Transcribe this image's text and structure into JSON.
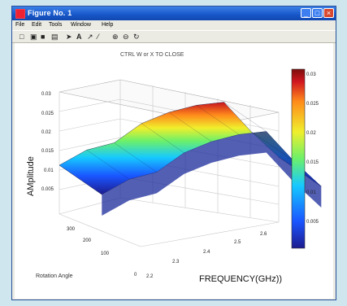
{
  "window": {
    "title": "Figure No. 1",
    "menus": [
      "File",
      "Edit",
      "Tools",
      "Window",
      "Help"
    ],
    "tools": [
      "new-icon",
      "open-icon",
      "save-icon",
      "print-icon",
      "select-arrow-icon",
      "text-icon",
      "arrow-icon",
      "line-icon",
      "zoom-in-icon",
      "zoom-out-icon",
      "rotate-icon"
    ]
  },
  "figure": {
    "note": "CTRL W  or X TO CLOSE",
    "zlabel": "AMplitude",
    "xlabel": "FREQUENCY(GHz))",
    "ylabel": "Rotation Angle"
  },
  "chart_data": {
    "type": "surface",
    "title": "CTRL W  or X TO CLOSE",
    "xlabel": "FREQUENCY(GHz))",
    "ylabel": "Rotation Angle",
    "zlabel": "AMplitude",
    "xlim": [
      2.2,
      2.6
    ],
    "ylim": [
      0,
      360
    ],
    "zlim": [
      0,
      0.03
    ],
    "x_ticks": [
      "2.2",
      "2.3",
      "2.4",
      "2.5",
      "2.6"
    ],
    "y_ticks": [
      "0",
      "100",
      "200",
      "300"
    ],
    "z_ticks": [
      "0.005",
      "0.01",
      "0.015",
      "0.02",
      "0.025",
      "0.03"
    ],
    "colorbar": {
      "ticks": [
        "0.005",
        "0.01",
        "0.015",
        "0.02",
        "0.025",
        "0.03"
      ],
      "colors": [
        "#1d1b8e",
        "#1a55ff",
        "#16c9ff",
        "#6cf06a",
        "#f0ef2c",
        "#ff8b1b",
        "#d1161f",
        "#7b0d0d"
      ]
    },
    "profile": {
      "x": [
        2.2,
        2.25,
        2.3,
        2.35,
        2.4,
        2.45,
        2.5,
        2.55,
        2.6
      ],
      "z": [
        0.012,
        0.016,
        0.018,
        0.023,
        0.026,
        0.028,
        0.029,
        0.022,
        0.016
      ]
    }
  }
}
